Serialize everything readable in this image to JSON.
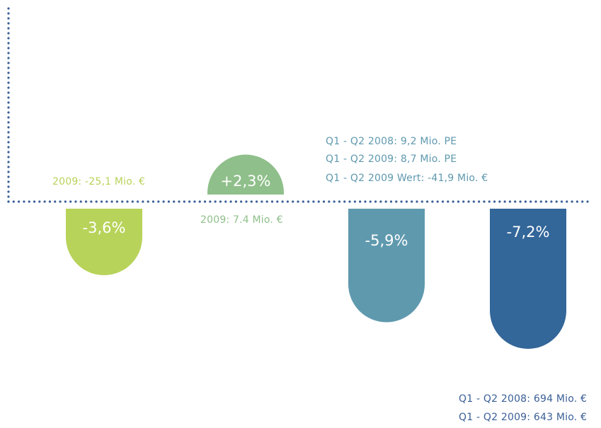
{
  "chart_data": {
    "type": "bar",
    "title": "",
    "xlabel": "",
    "ylabel": "",
    "values": [
      -3.6,
      2.3,
      -5.9,
      -7.2
    ],
    "value_labels": [
      "-3,6%",
      "+2,3%",
      "-5,9%",
      "-7,2%"
    ],
    "ylim": [
      -7.2,
      2.3
    ],
    "grid": false,
    "baseline": 0,
    "colors": [
      "#b8d35a",
      "#8fbf8a",
      "#5f99ae",
      "#336699"
    ],
    "axis_color": "#3a5f96",
    "annotations": {
      "bar1": "2009: -25,1 Mio. €",
      "bar2": "2009: 7.4 Mio. €",
      "bar3": [
        "Q1 - Q2 2008: 9,2 Mio. PE",
        "Q1 - Q2 2009: 8,7 Mio. PE",
        "Q1 - Q2 2009 Wert: -41,9 Mio. €"
      ],
      "bar4": [
        "Q1 - Q2 2008: 694 Mio. €",
        "Q1 - Q2 2009: 643 Mio. €"
      ]
    }
  }
}
